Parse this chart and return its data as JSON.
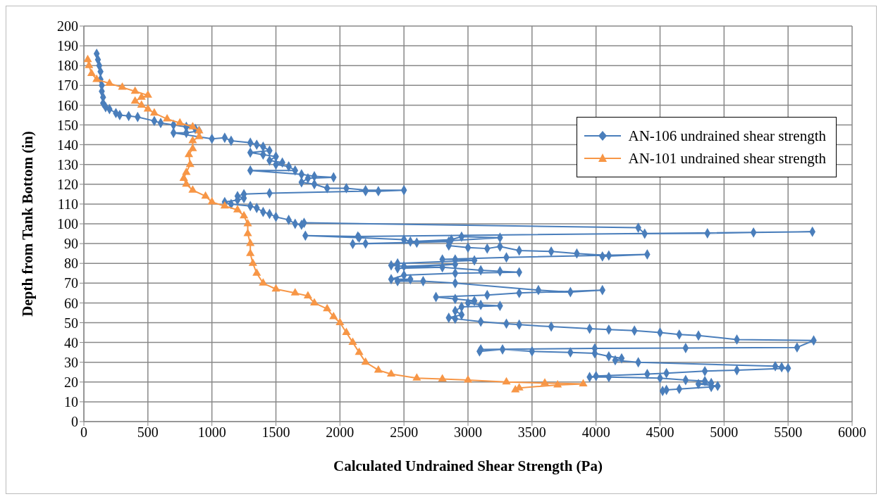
{
  "chart_data": {
    "type": "line",
    "xlabel": "Calculated Undrained Shear Strength (Pa)",
    "ylabel": "Depth from Tank Bottom (in)",
    "xlim": [
      0,
      6000
    ],
    "xticks": [
      0,
      500,
      1000,
      1500,
      2000,
      2500,
      3000,
      3500,
      4000,
      4500,
      5000,
      5500,
      6000
    ],
    "ylim": [
      0,
      200
    ],
    "yticks": [
      0,
      10,
      20,
      30,
      40,
      50,
      60,
      70,
      80,
      90,
      100,
      110,
      120,
      130,
      140,
      150,
      160,
      170,
      180,
      190,
      200
    ],
    "grid": true,
    "legend": "top right",
    "line_style": "solid",
    "series": [
      {
        "name": "AN-106 undrained shear strength",
        "marker": "diamond",
        "color": "#4a7ebb",
        "x": [
          100,
          110,
          120,
          130,
          130,
          140,
          140,
          150,
          150,
          170,
          200,
          250,
          280,
          350,
          420,
          550,
          600,
          700,
          800,
          870,
          900,
          800,
          700,
          1000,
          1100,
          1150,
          1300,
          1350,
          1400,
          1450,
          1300,
          1400,
          1500,
          1450,
          1550,
          1500,
          1600,
          1650,
          1300,
          1700,
          1800,
          1950,
          1750,
          1700,
          1800,
          1900,
          2050,
          2200,
          2500,
          2300,
          2200,
          1450,
          1250,
          1200,
          1250,
          1200,
          1100,
          1150,
          1300,
          1350,
          1400,
          1450,
          1500,
          1600,
          1650,
          1700,
          1720,
          4330,
          4380,
          4870,
          5230,
          5690,
          2140,
          1730,
          2150,
          2500,
          2550,
          2870,
          2950,
          3250,
          2600,
          2100,
          2200,
          2850,
          2850,
          3000,
          3150,
          3250,
          3400,
          3650,
          3850,
          4100,
          4050,
          4400,
          3300,
          2800,
          2900,
          3050,
          2450,
          2400,
          2500,
          2900,
          2450,
          2800,
          3100,
          3250,
          3400,
          2900,
          2500,
          2400,
          2550,
          2450,
          2650,
          2900,
          3550,
          3800,
          4050,
          3400,
          3150,
          2750,
          2900,
          3050,
          3000,
          3100,
          3250,
          2950,
          2900,
          2950,
          2850,
          2900,
          3100,
          3300,
          3400,
          3650,
          3950,
          4100,
          4300,
          4500,
          4650,
          4800,
          5100,
          5700,
          5570,
          4700,
          3990,
          3100,
          3090,
          3270,
          3500,
          3800,
          3990,
          4100,
          4200,
          4150,
          4330,
          5400,
          5450,
          5500,
          5100,
          4850,
          4550,
          4400,
          4000,
          3950,
          4100,
          4500,
          4700,
          4850,
          4900,
          4800,
          4950,
          4900,
          4650,
          4550,
          4520
        ],
        "values": [
          186,
          183,
          180,
          177,
          173,
          170,
          167,
          164,
          161,
          159,
          158,
          156,
          155,
          154.5,
          154,
          152,
          151,
          150,
          149,
          148,
          147,
          146,
          146,
          143,
          143.5,
          142,
          141,
          140,
          139,
          137,
          136,
          135,
          134,
          132,
          131,
          130,
          129,
          127,
          127,
          125,
          124,
          123.5,
          123,
          121,
          120,
          118,
          118,
          117,
          117,
          116.5,
          116.5,
          115.5,
          115,
          114,
          113,
          112,
          111,
          110,
          109,
          108,
          106,
          105,
          103.5,
          102,
          100,
          99.5,
          100.5,
          98,
          95,
          95.2,
          95.6,
          96,
          93.6,
          94,
          93,
          92,
          91,
          92,
          93.5,
          93,
          90.5,
          89.8,
          90,
          91,
          89,
          88,
          87.5,
          88.5,
          86.5,
          86,
          85,
          84,
          83.5,
          84.5,
          83,
          82,
          82,
          81.5,
          80,
          79,
          78.5,
          79.5,
          77.5,
          78,
          76.5,
          76,
          75.5,
          75,
          74,
          72,
          72,
          71,
          71,
          70,
          66.5,
          65.5,
          66.5,
          65,
          64,
          63,
          62,
          61,
          60,
          59,
          58.5,
          58,
          56,
          54,
          52.5,
          52,
          50.5,
          49.5,
          49,
          48,
          47,
          46.5,
          46,
          45,
          44,
          43.5,
          41.5,
          41,
          37.5,
          37.2,
          37,
          36.5,
          35.5,
          36.5,
          35.5,
          35,
          34.5,
          33,
          32,
          31,
          30,
          28,
          27.5,
          27,
          26,
          25.5,
          24.5,
          24,
          23,
          22.5,
          22.5,
          22,
          21,
          20.5,
          19.5,
          19,
          18,
          17.5,
          16.5,
          16,
          15.5
        ]
      },
      {
        "name": "AN-101 undrained shear strength",
        "marker": "triangle",
        "color": "#f79646",
        "x": [
          30,
          40,
          60,
          100,
          200,
          300,
          400,
          500,
          450,
          400,
          450,
          500,
          550,
          650,
          750,
          850,
          900,
          900,
          850,
          850,
          820,
          830,
          800,
          780,
          800,
          850,
          950,
          1000,
          1100,
          1200,
          1250,
          1280,
          1280,
          1300,
          1300,
          1320,
          1350,
          1400,
          1500,
          1650,
          1750,
          1800,
          1900,
          1950,
          2000,
          2050,
          2100,
          2150,
          2200,
          2300,
          2400,
          2600,
          2800,
          3000,
          3300,
          3600,
          3900,
          3700,
          3400,
          3370
        ],
        "values": [
          183,
          180,
          176,
          173,
          171,
          169,
          167,
          165,
          164,
          162,
          160,
          158,
          156,
          153,
          151,
          149,
          147,
          144,
          142,
          138,
          135,
          130,
          126,
          123,
          120,
          117,
          114,
          111,
          109,
          107,
          104,
          100,
          95,
          90,
          85,
          80,
          75,
          70,
          67,
          65,
          63.5,
          60,
          57,
          53,
          50,
          45,
          40,
          35,
          30,
          26,
          24,
          22,
          21.5,
          21,
          20,
          19.5,
          19,
          18.5,
          17,
          16
        ]
      }
    ]
  }
}
